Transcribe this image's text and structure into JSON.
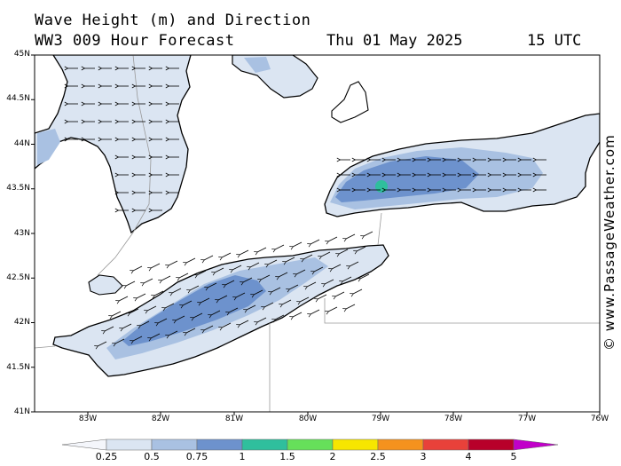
{
  "header": {
    "title": "Wave Height (m) and Direction",
    "subtitle": "WW3 009 Hour Forecast",
    "date": "Thu 01 May 2025",
    "time": "15 UTC"
  },
  "watermark": "© www.PassageWeather.com",
  "axes": {
    "lat_labels": [
      "45N",
      "44.5N",
      "44N",
      "43.5N",
      "43N",
      "42.5N",
      "42N",
      "41.5N",
      "41N"
    ],
    "lon_labels": [
      "83W",
      "82W",
      "81W",
      "80W",
      "79W",
      "78W",
      "77W",
      "76W"
    ],
    "lat_range": [
      41,
      45
    ],
    "lon_range": [
      -83.75,
      -76
    ]
  },
  "legend": {
    "labels": [
      "0.25",
      "0.5",
      "0.75",
      "1",
      "1.5",
      "2",
      "2.5",
      "3",
      "4",
      "5"
    ],
    "colors": [
      "#f4f6fb",
      "#dbe5f2",
      "#a9c1e2",
      "#6d92cd",
      "#2fbf9d",
      "#66e05a",
      "#f7e600",
      "#f5921e",
      "#e8413a",
      "#b8002a",
      "#c100c9"
    ]
  },
  "map": {
    "background": "#ffffff",
    "water_light": "#dbe5f2",
    "water_mid": "#a9c1e2",
    "water_dark": "#6d92cd",
    "hotspot": "#2fbf9d"
  }
}
